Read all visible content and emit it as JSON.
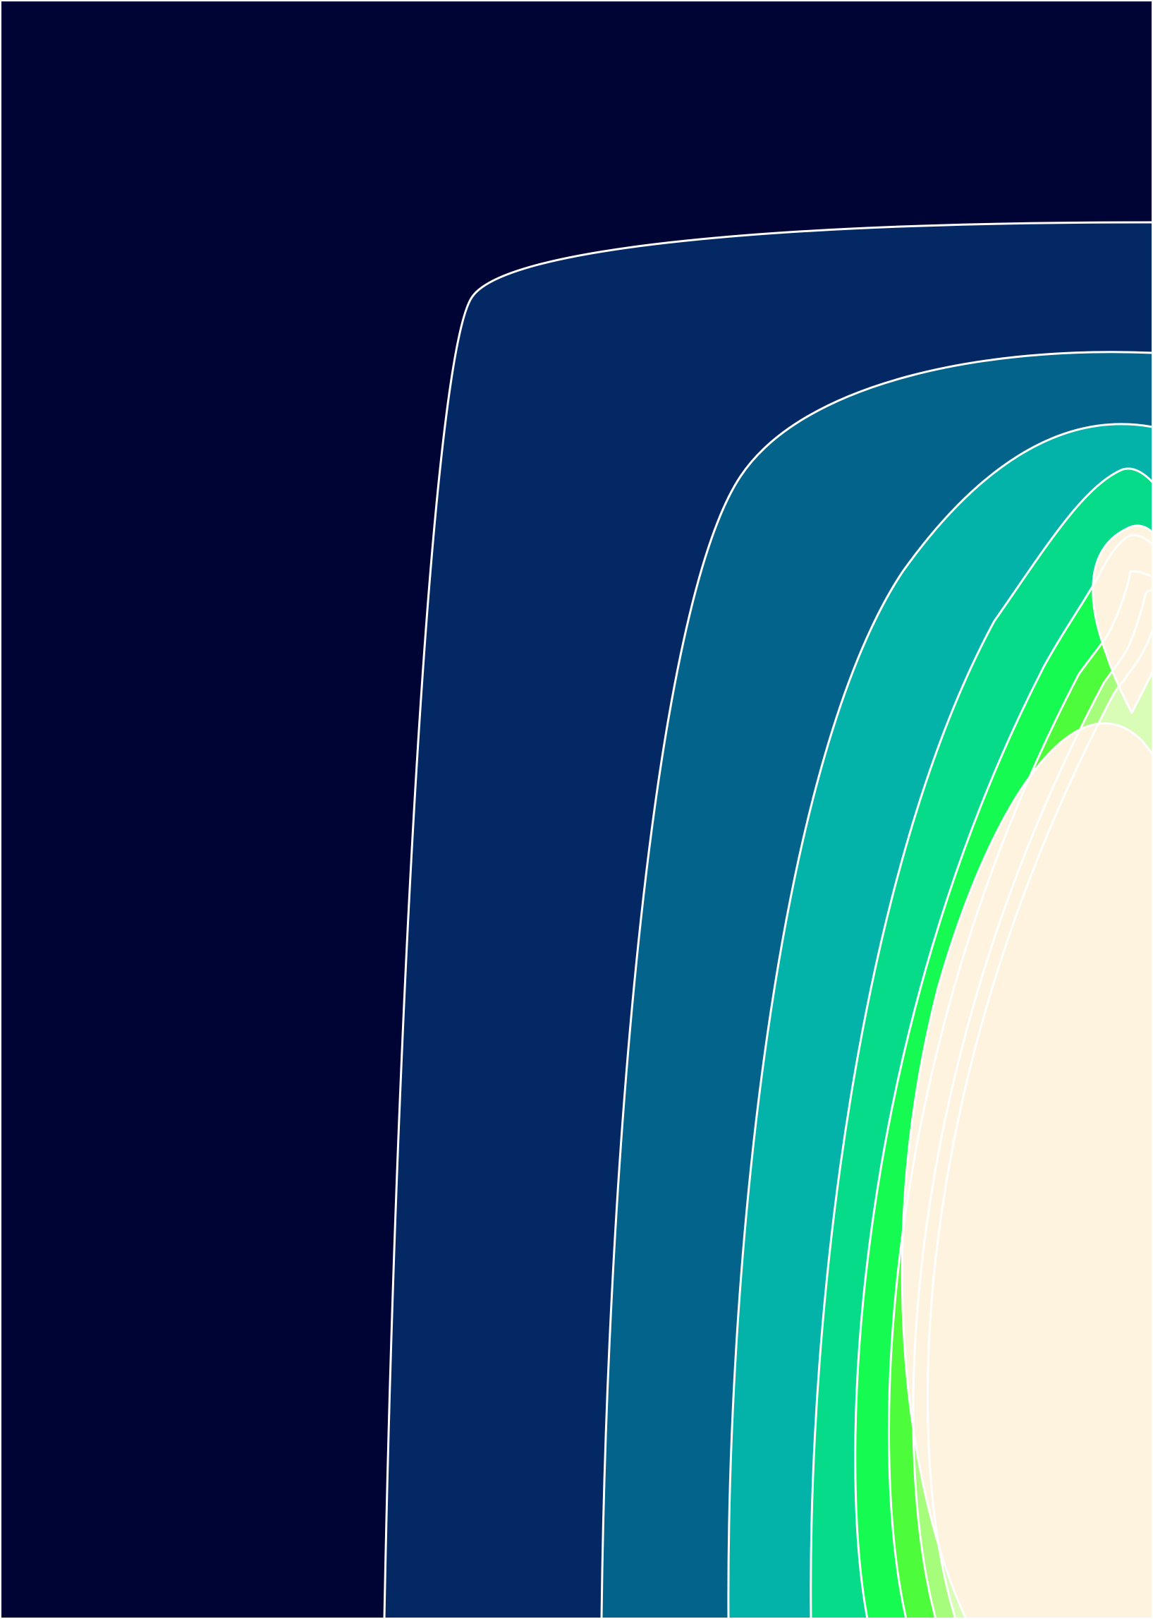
{
  "chart_data": {
    "type": "heatmap",
    "subtype": "filled-contour",
    "title": "",
    "xlabel": "",
    "ylabel": "",
    "grid": false,
    "legend": "none",
    "colorbar": "none",
    "contour_line_color": "#ffffff",
    "levels": [
      {
        "level": 0,
        "fill": "#000435"
      },
      {
        "level": 1,
        "fill": "#042864"
      },
      {
        "level": 2,
        "fill": "#03638a"
      },
      {
        "level": 3,
        "fill": "#03b3aa"
      },
      {
        "level": 4,
        "fill": "#06db8a"
      },
      {
        "level": 5,
        "fill": "#15fb51"
      },
      {
        "level": 6,
        "fill": "#4dfc3a"
      },
      {
        "level": 7,
        "fill": "#a6fd7c"
      },
      {
        "level": 8,
        "fill": "#d9fcb6"
      },
      {
        "level": 9,
        "fill": "#fdf3df"
      }
    ]
  }
}
